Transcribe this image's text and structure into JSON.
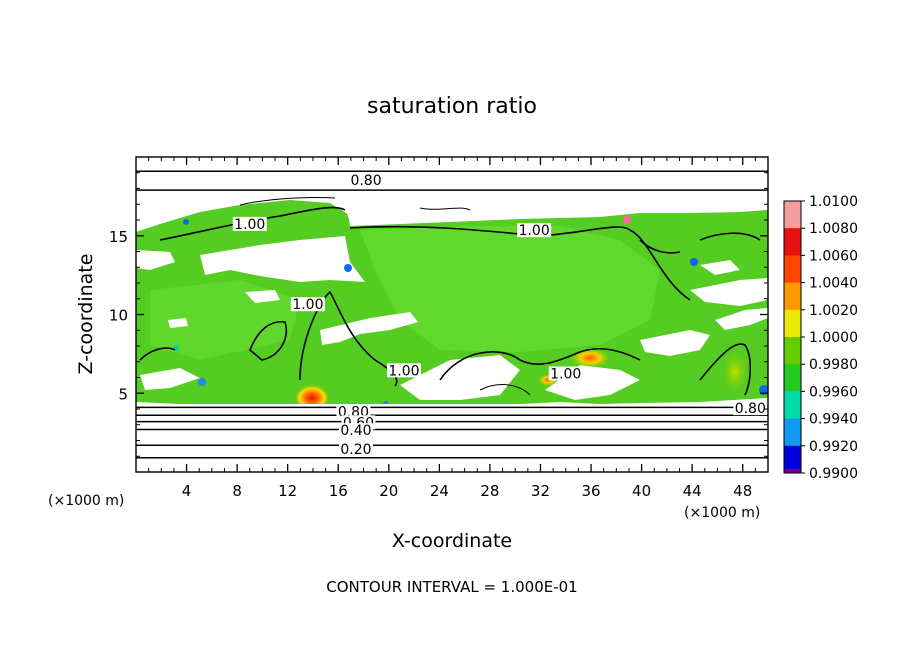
{
  "chart_data": {
    "type": "heatmap",
    "title": "saturation ratio",
    "xlabel": "X-coordinate",
    "ylabel": "Z-coordinate",
    "x_unit_left": "(×1000 m)",
    "x_unit_right": "(×1000 m)",
    "xlim": [
      0,
      50
    ],
    "ylim": [
      0,
      20
    ],
    "xticks": [
      4,
      8,
      12,
      16,
      20,
      24,
      28,
      32,
      36,
      40,
      44,
      48
    ],
    "yticks": [
      5,
      10,
      15
    ],
    "footer": "CONTOUR INTERVAL = 1.000E-01",
    "colorbar": {
      "levels": [
        "1.0100",
        "1.0080",
        "1.0060",
        "1.0040",
        "1.0020",
        "1.0000",
        "0.9980",
        "0.9960",
        "0.9940",
        "0.9920",
        "0.9900"
      ],
      "colors": [
        "#f4a0a0",
        "#e81010",
        "#ff4400",
        "#ff9900",
        "#e8e800",
        "#66cc00",
        "#22cc22",
        "#00ddaa",
        "#1199ee",
        "#0000dd",
        "#660099"
      ]
    },
    "colors": {
      "green": "#44cc22",
      "light_green": "#66dd33",
      "orange": "#ff8800",
      "red": "#ee2200",
      "yellow": "#dddd00",
      "blue": "#2266ee",
      "cyan": "#00ccbb"
    },
    "contour_labels": [
      {
        "text": "0.80",
        "x": 18.2,
        "y": 18.3
      },
      {
        "text": "1.00",
        "x": 9.0,
        "y": 15.5
      },
      {
        "text": "1.00",
        "x": 31.5,
        "y": 15.1
      },
      {
        "text": "1.00",
        "x": 13.6,
        "y": 10.4
      },
      {
        "text": "1.00",
        "x": 21.2,
        "y": 6.2
      },
      {
        "text": "1.00",
        "x": 34.0,
        "y": 6.0
      },
      {
        "text": "0.80",
        "x": 17.2,
        "y": 3.6
      },
      {
        "text": "0.60",
        "x": 17.6,
        "y": 2.9
      },
      {
        "text": "0.40",
        "x": 17.4,
        "y": 2.4
      },
      {
        "text": "0.20",
        "x": 17.4,
        "y": 1.2
      },
      {
        "text": "0.80",
        "x": 48.6,
        "y": 3.8
      }
    ],
    "horizontal_contours_y": [
      0.9,
      1.7,
      2.7,
      3.2,
      3.6,
      4.1,
      17.9,
      19.1
    ],
    "peaks": [
      {
        "x": 13.8,
        "y": 4.8,
        "value": 1.008
      },
      {
        "x": 35.8,
        "y": 7.2,
        "value": 1.004
      },
      {
        "x": 46.5,
        "y": 6.0,
        "value": 1.003
      }
    ]
  }
}
